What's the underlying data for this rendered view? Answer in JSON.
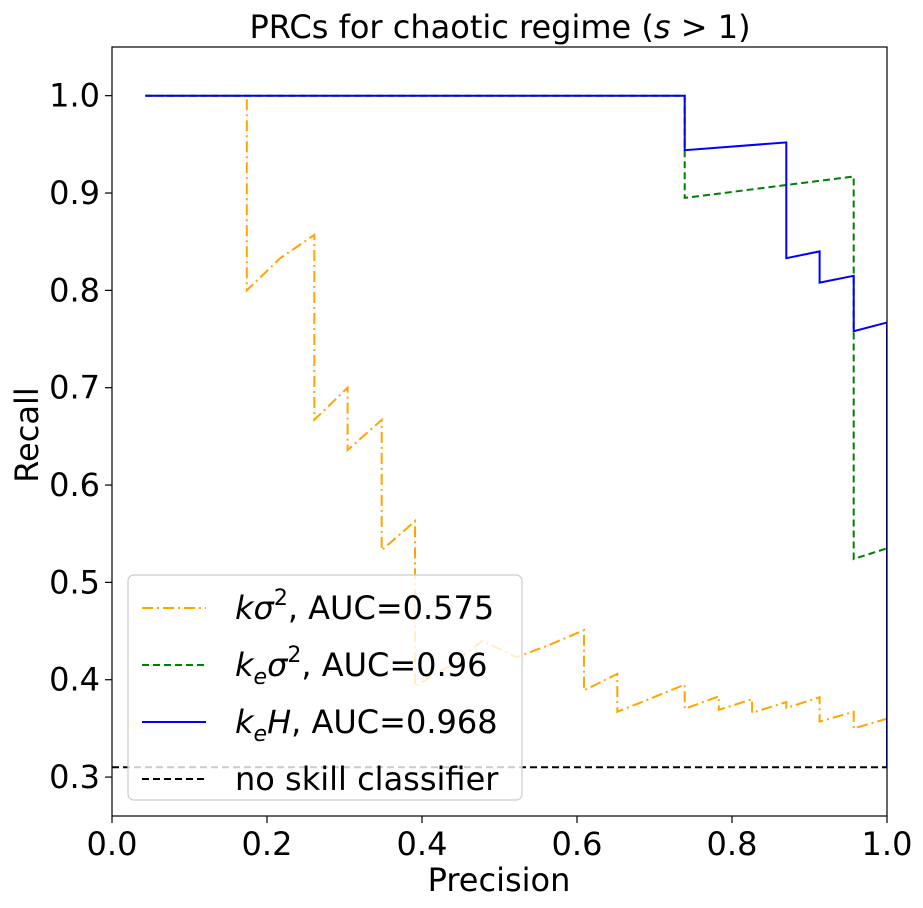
{
  "chart_data": {
    "type": "line",
    "title": "PRCs for chaotic regime (s > 1)",
    "title_prefix": "PRCs for chaotic regime (",
    "title_var": "s",
    "title_suffix": " > 1)",
    "xlabel": "Precision",
    "ylabel": "Recall",
    "xlim": [
      0.0,
      1.0
    ],
    "ylim": [
      0.26,
      1.05
    ],
    "xticks": [
      0.0,
      0.2,
      0.4,
      0.6,
      0.8,
      1.0
    ],
    "xtick_labels": [
      "0.0",
      "0.2",
      "0.4",
      "0.6",
      "0.8",
      "1.0"
    ],
    "yticks": [
      0.3,
      0.4,
      0.5,
      0.6,
      0.7,
      0.8,
      0.9,
      1.0
    ],
    "ytick_labels": [
      "0.3",
      "0.4",
      "0.5",
      "0.6",
      "0.7",
      "0.8",
      "0.9",
      "1.0"
    ],
    "grid": false,
    "legend_position": "lower-left",
    "series": [
      {
        "name": "kσ², AUC=0.575",
        "color": "#FFA500",
        "style": "dashdot",
        "x": [
          0.043,
          0.174,
          0.174,
          0.217,
          0.261,
          0.261,
          0.304,
          0.304,
          0.348,
          0.348,
          0.391,
          0.391,
          0.435,
          0.478,
          0.522,
          0.565,
          0.609,
          0.609,
          0.652,
          0.652,
          0.696,
          0.739,
          0.739,
          0.783,
          0.783,
          0.826,
          0.826,
          0.87,
          0.87,
          0.913,
          0.913,
          0.957,
          0.957,
          1.0,
          1.0
        ],
        "y": [
          1.0,
          1.0,
          0.8,
          0.833,
          0.857,
          0.667,
          0.7,
          0.636,
          0.667,
          0.533,
          0.563,
          0.393,
          0.414,
          0.44,
          0.423,
          0.436,
          0.451,
          0.389,
          0.406,
          0.367,
          0.381,
          0.395,
          0.37,
          0.383,
          0.369,
          0.38,
          0.366,
          0.377,
          0.371,
          0.382,
          0.357,
          0.367,
          0.35,
          0.36,
          0.31
        ]
      },
      {
        "name": "kₑσ², AUC=0.96",
        "color": "#008000",
        "style": "dashed",
        "x": [
          0.043,
          0.739,
          0.739,
          0.957,
          0.957,
          1.0,
          1.0
        ],
        "y": [
          1.0,
          1.0,
          0.895,
          0.917,
          0.524,
          0.535,
          0.31
        ]
      },
      {
        "name": "kₑH, AUC=0.968",
        "color": "#0000FF",
        "style": "solid",
        "x": [
          0.043,
          0.739,
          0.739,
          0.87,
          0.87,
          0.913,
          0.913,
          0.957,
          0.957,
          1.0,
          1.0
        ],
        "y": [
          1.0,
          1.0,
          0.944,
          0.952,
          0.833,
          0.84,
          0.808,
          0.815,
          0.758,
          0.767,
          0.31
        ]
      },
      {
        "name": "no skill classifier",
        "color": "#000000",
        "style": "dashed",
        "x": [
          0.0,
          1.0
        ],
        "y": [
          0.31,
          0.31
        ]
      }
    ],
    "legend": [
      {
        "prefix": "k",
        "sub": "",
        "sym": "σ",
        "sup": "2",
        "suffix": ", AUC=0.575",
        "color": "#FFA500",
        "style": "dashdot"
      },
      {
        "prefix": "k",
        "sub": "e",
        "sym": "σ",
        "sup": "2",
        "suffix": ", AUC=0.96",
        "color": "#008000",
        "style": "dashed"
      },
      {
        "prefix": "k",
        "sub": "e",
        "sym": "H",
        "sup": "",
        "suffix": ", AUC=0.968",
        "color": "#0000FF",
        "style": "solid"
      },
      {
        "prefix": "",
        "sub": "",
        "sym": "",
        "sup": "",
        "suffix": "no skill classifier",
        "color": "#000000",
        "style": "dashed"
      }
    ]
  }
}
